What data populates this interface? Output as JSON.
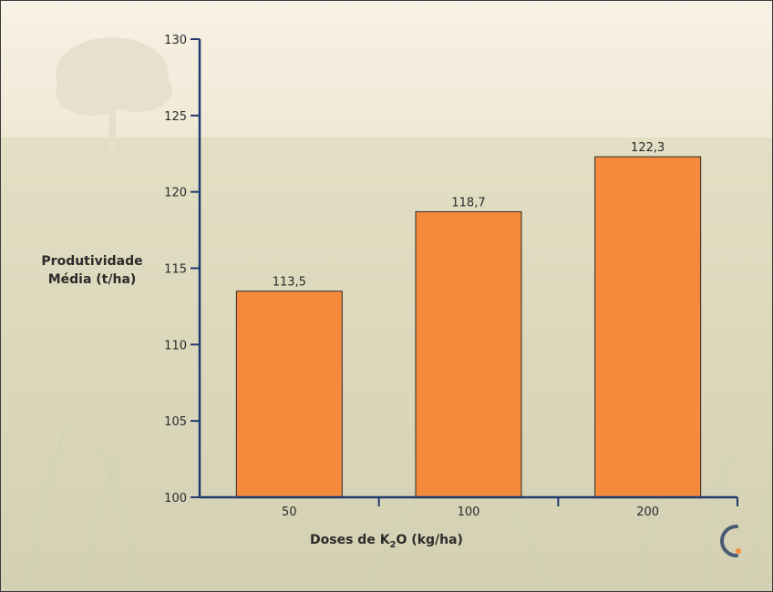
{
  "chart_data": {
    "type": "bar",
    "categories": [
      "50",
      "100",
      "200"
    ],
    "values": [
      113.5,
      118.7,
      122.3
    ],
    "value_labels": [
      "113,5",
      "118,7",
      "122,3"
    ],
    "yticks": [
      "100",
      "105",
      "110",
      "115",
      "120",
      "125",
      "130"
    ],
    "ylim": [
      100,
      130
    ],
    "ylabel_line1": "Produtividade",
    "ylabel_line2": "Média (t/ha)",
    "xlabel_prefix": "Doses de K",
    "xlabel_subscript": "2",
    "xlabel_suffix": "O (kg/ha)",
    "bar_color": "#f58a3c",
    "axis_color": "#1f3a6e",
    "grid": false
  },
  "brand": {
    "logo_icon": "brand-c-logo-icon",
    "logo_color": "#4a5a72",
    "logo_accent": "#f58a3c"
  }
}
